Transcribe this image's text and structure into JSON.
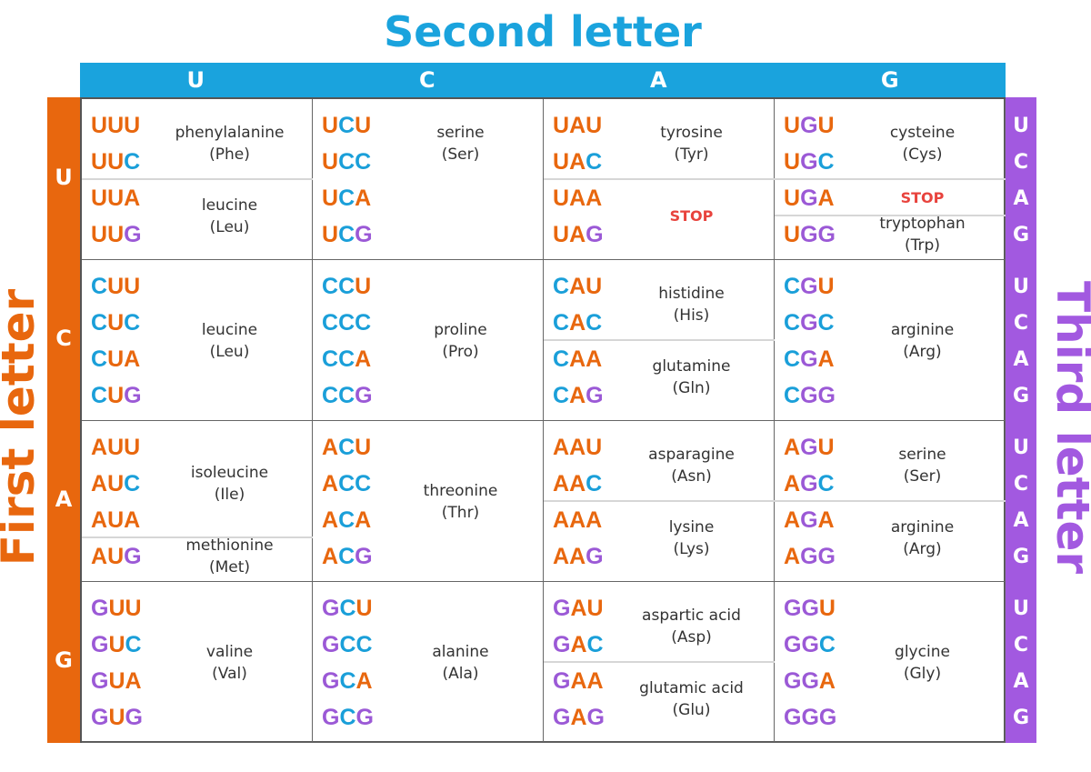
{
  "titles": {
    "second": "Second letter",
    "first": "First letter",
    "third": "Third letter"
  },
  "colors": {
    "U": "#e8670e",
    "C": "#1a9fd9",
    "A": "#e8670e",
    "G": "#9b59d6",
    "orange": "#e8670e",
    "blue": "#1aa3dd",
    "purple": "#a259e0",
    "stop": "#e8433d"
  },
  "header_second": [
    "U",
    "C",
    "A",
    "G"
  ],
  "header_first": [
    "U",
    "C",
    "A",
    "G"
  ],
  "header_third": [
    "U",
    "C",
    "A",
    "G"
  ],
  "cells": [
    {
      "row": "U",
      "col": "U",
      "codons": [
        "UUU",
        "UUC",
        "UUA",
        "UUG"
      ],
      "groups": [
        {
          "rows": [
            0,
            1
          ],
          "name": "phenylalanine",
          "abbr": "(Phe)"
        },
        {
          "rows": [
            2,
            3
          ],
          "name": "leucine",
          "abbr": "(Leu)"
        }
      ]
    },
    {
      "row": "U",
      "col": "C",
      "codons": [
        "UCU",
        "UCC",
        "UCA",
        "UCG"
      ],
      "groups": [
        {
          "rows": [
            0,
            1
          ],
          "name": "serine",
          "abbr": "(Ser)"
        }
      ]
    },
    {
      "row": "U",
      "col": "A",
      "codons": [
        "UAU",
        "UAC",
        "UAA",
        "UAG"
      ],
      "groups": [
        {
          "rows": [
            0,
            1
          ],
          "name": "tyrosine",
          "abbr": "(Tyr)"
        },
        {
          "rows": [
            2,
            3
          ],
          "name": "STOP",
          "abbr": ""
        }
      ]
    },
    {
      "row": "U",
      "col": "G",
      "codons": [
        "UGU",
        "UGC",
        "UGA",
        "UGG"
      ],
      "groups": [
        {
          "rows": [
            0,
            1
          ],
          "name": "cysteine",
          "abbr": "(Cys)"
        },
        {
          "rows": [
            2
          ],
          "name": "STOP",
          "abbr": ""
        },
        {
          "rows": [
            3
          ],
          "name": "tryptophan",
          "abbr": "(Trp)"
        }
      ]
    },
    {
      "row": "C",
      "col": "U",
      "codons": [
        "CUU",
        "CUC",
        "CUA",
        "CUG"
      ],
      "groups": [
        {
          "rows": [
            0,
            3
          ],
          "name": "leucine",
          "abbr": "(Leu)"
        }
      ]
    },
    {
      "row": "C",
      "col": "C",
      "codons": [
        "CCU",
        "CCC",
        "CCA",
        "CCG"
      ],
      "groups": [
        {
          "rows": [
            0,
            3
          ],
          "name": "proline",
          "abbr": "(Pro)"
        }
      ]
    },
    {
      "row": "C",
      "col": "A",
      "codons": [
        "CAU",
        "CAC",
        "CAA",
        "CAG"
      ],
      "groups": [
        {
          "rows": [
            0,
            1
          ],
          "name": "histidine",
          "abbr": "(His)"
        },
        {
          "rows": [
            2,
            3
          ],
          "name": "glutamine",
          "abbr": "(Gln)"
        }
      ]
    },
    {
      "row": "C",
      "col": "G",
      "codons": [
        "CGU",
        "CGC",
        "CGA",
        "CGG"
      ],
      "groups": [
        {
          "rows": [
            0,
            3
          ],
          "name": "arginine",
          "abbr": "(Arg)"
        }
      ]
    },
    {
      "row": "A",
      "col": "U",
      "codons": [
        "AUU",
        "AUC",
        "AUA",
        "AUG"
      ],
      "groups": [
        {
          "rows": [
            0,
            2
          ],
          "name": "isoleucine",
          "abbr": "(Ile)"
        },
        {
          "rows": [
            3
          ],
          "name": "methionine",
          "abbr": "(Met)"
        }
      ]
    },
    {
      "row": "A",
      "col": "C",
      "codons": [
        "ACU",
        "ACC",
        "ACA",
        "ACG"
      ],
      "groups": [
        {
          "rows": [
            0,
            3
          ],
          "name": "threonine",
          "abbr": "(Thr)"
        }
      ]
    },
    {
      "row": "A",
      "col": "A",
      "codons": [
        "AAU",
        "AAC",
        "AAA",
        "AAG"
      ],
      "groups": [
        {
          "rows": [
            0,
            1
          ],
          "name": "asparagine",
          "abbr": "(Asn)"
        },
        {
          "rows": [
            2,
            3
          ],
          "name": "lysine",
          "abbr": "(Lys)"
        }
      ]
    },
    {
      "row": "A",
      "col": "G",
      "codons": [
        "AGU",
        "AGC",
        "AGA",
        "AGG"
      ],
      "groups": [
        {
          "rows": [
            0,
            1
          ],
          "name": "serine",
          "abbr": "(Ser)"
        },
        {
          "rows": [
            2,
            3
          ],
          "name": "arginine",
          "abbr": "(Arg)"
        }
      ]
    },
    {
      "row": "G",
      "col": "U",
      "codons": [
        "GUU",
        "GUC",
        "GUA",
        "GUG"
      ],
      "groups": [
        {
          "rows": [
            0,
            3
          ],
          "name": "valine",
          "abbr": "(Val)"
        }
      ]
    },
    {
      "row": "G",
      "col": "C",
      "codons": [
        "GCU",
        "GCC",
        "GCA",
        "GCG"
      ],
      "groups": [
        {
          "rows": [
            0,
            3
          ],
          "name": "alanine",
          "abbr": "(Ala)"
        }
      ]
    },
    {
      "row": "G",
      "col": "A",
      "codons": [
        "GAU",
        "GAC",
        "GAA",
        "GAG"
      ],
      "groups": [
        {
          "rows": [
            0,
            1
          ],
          "name": "aspartic acid",
          "abbr": "(Asp)"
        },
        {
          "rows": [
            2,
            3
          ],
          "name": "glutamic acid",
          "abbr": "(Glu)"
        }
      ]
    },
    {
      "row": "G",
      "col": "G",
      "codons": [
        "GGU",
        "GGC",
        "GGA",
        "GGG"
      ],
      "groups": [
        {
          "rows": [
            0,
            3
          ],
          "name": "glycine",
          "abbr": "(Gly)"
        }
      ]
    }
  ]
}
